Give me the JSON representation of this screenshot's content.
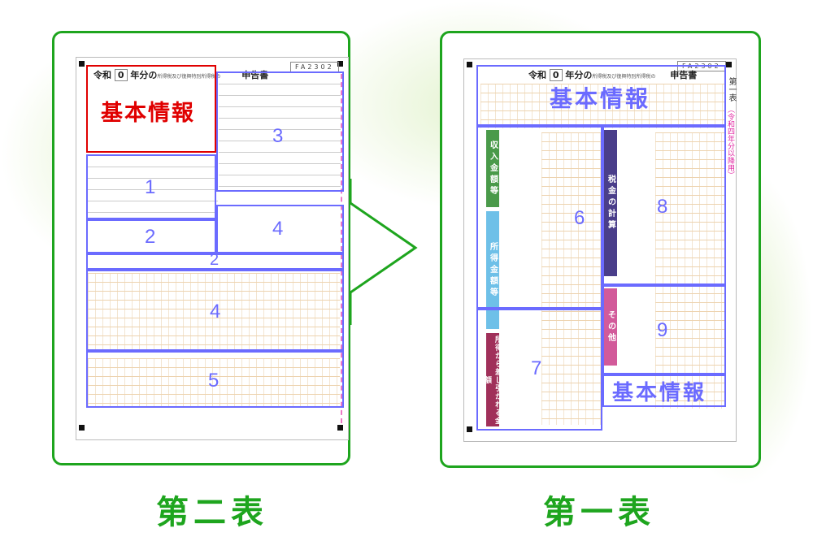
{
  "left_panel": {
    "caption": "第二表",
    "form": {
      "era": "令和",
      "year_box": "0",
      "title_mid": "年分の",
      "title_small": "所得税及び復興特別所得税の",
      "title_end": "申告書",
      "code": "FA2302"
    },
    "basic_info_label": "基本情報",
    "sections": [
      "1",
      "2",
      "2",
      "3",
      "4",
      "4",
      "5"
    ]
  },
  "right_panel": {
    "caption": "第一表",
    "form": {
      "era": "令和",
      "year_box": "0",
      "title_mid": "年分の",
      "title_small": "所得税及び復興特別所得税の",
      "title_end": "申告書",
      "code": "FA2302",
      "side_title": "第一表",
      "side_note": "（令和四年分以降用）"
    },
    "basic_info_label": "基本情報",
    "basic_info_label_2": "基本情報",
    "category_labels": {
      "income": "収入金額等",
      "income_amount": "所得金額等",
      "deductions": "所得から差し引かれる金額",
      "tax": "税金の計算",
      "other": "その他"
    },
    "sections": [
      "6",
      "7",
      "8",
      "9"
    ]
  },
  "colors": {
    "accent_green": "#1ea51e",
    "section_blue": "#6b6bff",
    "basic_info_red": "#e00000",
    "form_orange": "#d8a050"
  }
}
